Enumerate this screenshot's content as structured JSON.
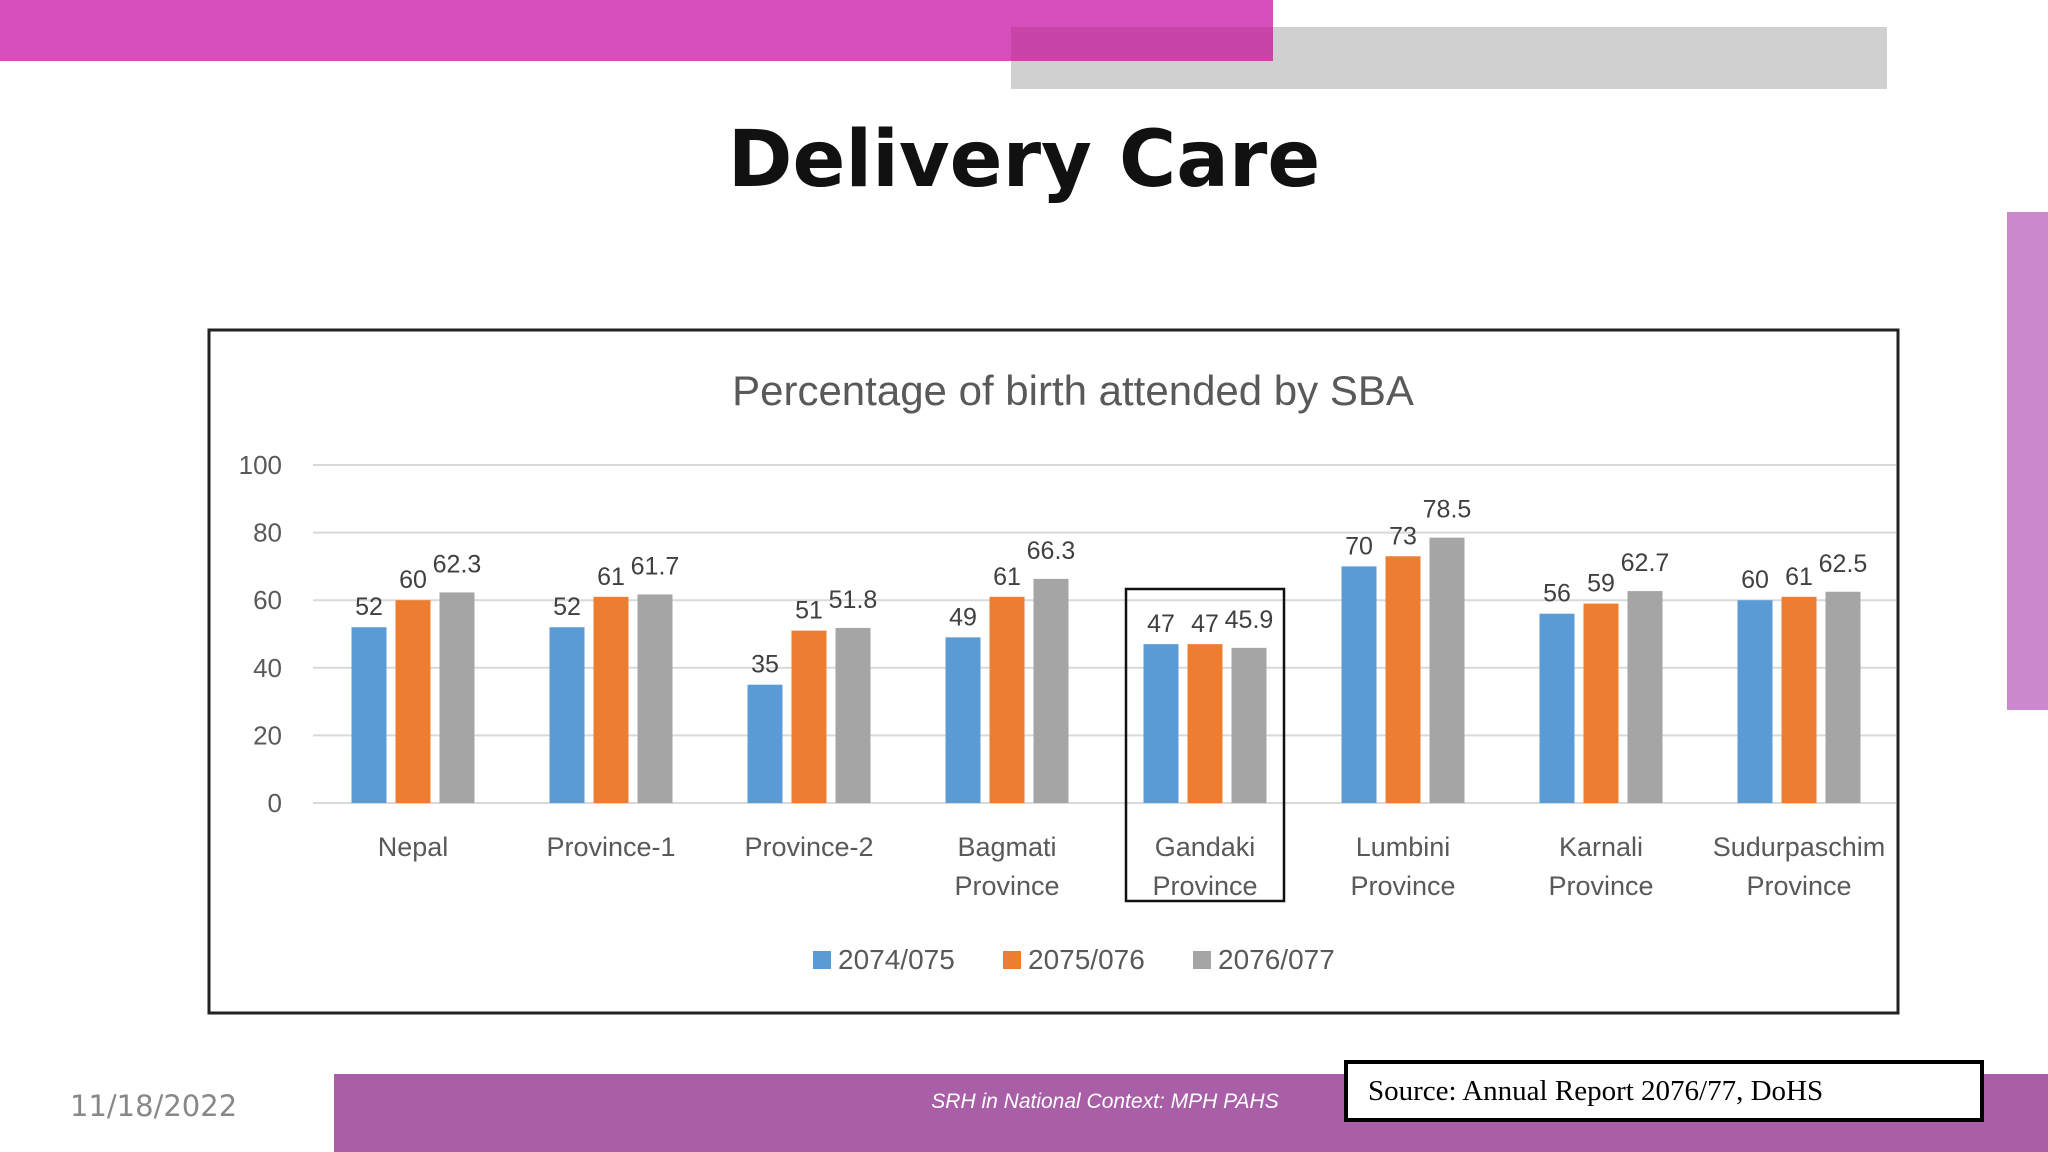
{
  "slide": {
    "title": "Delivery Care",
    "date": "11/18/2022",
    "footer_text": "SRH in National Context: MPH PAHS",
    "source": "Source: Annual Report 2076/77, DoHS",
    "colors": {
      "top_bar": "#d64fba",
      "gray_bar": "#d0d0d0",
      "side_bar": "#cc88cc",
      "footer_bar": "#a95fa8"
    }
  },
  "chart_data": {
    "type": "bar",
    "title": "Percentage of birth attended by SBA",
    "categories": [
      [
        "Nepal"
      ],
      [
        "Province-1"
      ],
      [
        "Province-2"
      ],
      [
        "Bagmati",
        "Province"
      ],
      [
        "Gandaki",
        "Province"
      ],
      [
        "Lumbini",
        "Province"
      ],
      [
        "Karnali",
        "Province"
      ],
      [
        "Sudurpaschim",
        "Province"
      ]
    ],
    "highlighted_category": "Gandaki Province",
    "series": [
      {
        "name": "2074/075",
        "color": "#5b9bd5",
        "values": [
          52,
          52,
          35,
          49,
          47,
          70,
          56,
          60
        ]
      },
      {
        "name": "2075/076",
        "color": "#ed7d31",
        "values": [
          60,
          61,
          51,
          61,
          47,
          73,
          59,
          61
        ]
      },
      {
        "name": "2076/077",
        "color": "#a5a5a5",
        "values": [
          62.3,
          61.7,
          51.8,
          66.3,
          45.9,
          78.5,
          62.7,
          62.5
        ]
      }
    ],
    "ylim": [
      0,
      100
    ],
    "yticks": [
      0,
      20,
      40,
      60,
      80,
      100
    ],
    "grid": true,
    "legend": "bottom",
    "xlabel": "",
    "ylabel": ""
  }
}
